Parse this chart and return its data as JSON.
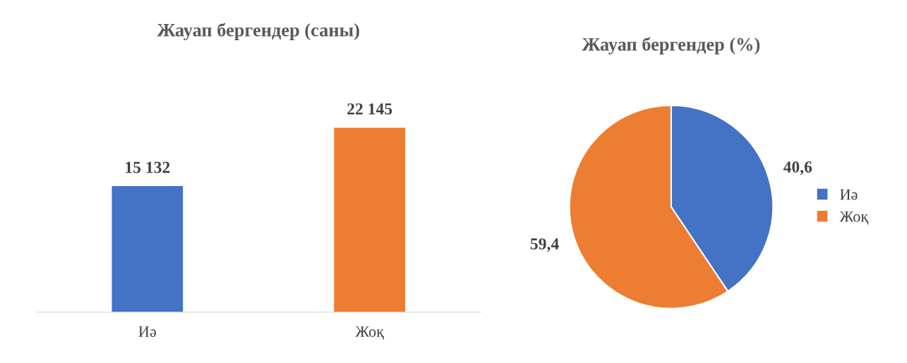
{
  "chart_data": [
    {
      "type": "bar",
      "title": "Жауап бергендер (саны)",
      "categories": [
        "Иә",
        "Жоқ"
      ],
      "values": [
        15132,
        22145
      ],
      "colors": [
        "#4472c4",
        "#ed7d31"
      ],
      "value_labels": [
        "15 132",
        "22 145"
      ],
      "tick_labels": "x",
      "grid": false
    },
    {
      "type": "pie",
      "title": "Жауап бергендер (%)",
      "categories": [
        "Иә",
        "Жоқ"
      ],
      "values": [
        40.6,
        59.4
      ],
      "colors": [
        "#4472c4",
        "#ed7d31"
      ],
      "value_labels": [
        "40,6",
        "59,4"
      ],
      "legend": "right"
    }
  ]
}
